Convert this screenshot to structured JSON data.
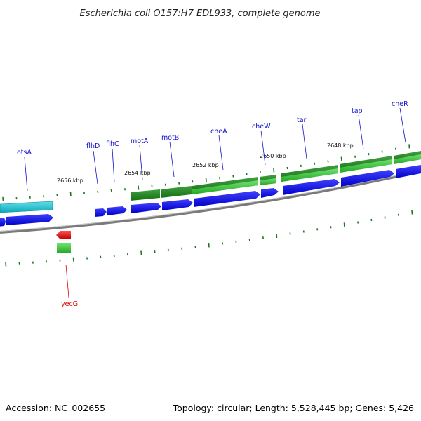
{
  "title": "Escherichia coli O157:H7 EDL933, complete genome",
  "footer": {
    "accession": "Accession: NC_002655",
    "summary": "Topology: circular; Length: 5,528,445 bp; Genes: 5,426"
  },
  "colors": {
    "backbone": "#808080",
    "forward_cds": "#0000ee",
    "cyan_feature": "#20c8d8",
    "dark_green_feature": "#1f8a1f",
    "light_green_feature": "#3cc83c",
    "red_feature": "#ee0000",
    "tick": "#1a7a1a",
    "label_blue": "#1010cc",
    "label_red": "#dd0000"
  },
  "scale_labels": [
    "2656 kbp",
    "2654 kbp",
    "2652 kbp",
    "2650 kbp",
    "2648 kbp"
  ],
  "gene_labels": [
    {
      "name": "otsA",
      "strand": "forward"
    },
    {
      "name": "flhD",
      "strand": "forward"
    },
    {
      "name": "flhC",
      "strand": "forward"
    },
    {
      "name": "motA",
      "strand": "forward"
    },
    {
      "name": "motB",
      "strand": "forward"
    },
    {
      "name": "cheA",
      "strand": "forward"
    },
    {
      "name": "cheW",
      "strand": "forward"
    },
    {
      "name": "tar",
      "strand": "forward"
    },
    {
      "name": "tap",
      "strand": "forward"
    },
    {
      "name": "cheR",
      "strand": "forward"
    },
    {
      "name": "yecG",
      "strand": "reverse"
    }
  ]
}
